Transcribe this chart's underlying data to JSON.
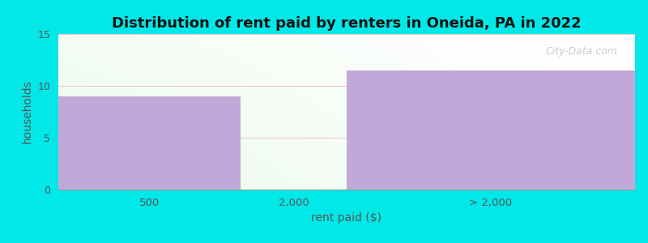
{
  "title": "Distribution of rent paid by renters in Oneida, PA in 2022",
  "xlabel": "rent paid ($)",
  "ylabel": "households",
  "categories": [
    "500",
    "2,000",
    "> 2,000"
  ],
  "values": [
    9,
    0,
    11.5
  ],
  "bar_color": "#c2a8d8",
  "ylim": [
    0,
    15
  ],
  "yticks": [
    0,
    5,
    10,
    15
  ],
  "background_color": "#00e8e8",
  "title_fontsize": 13,
  "label_fontsize": 10,
  "watermark": "City-Data.com"
}
